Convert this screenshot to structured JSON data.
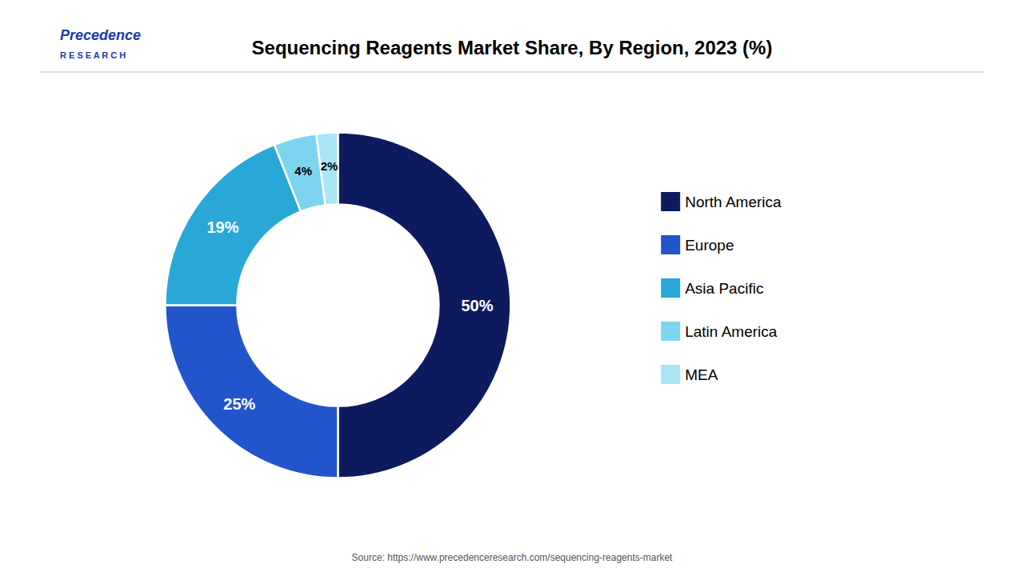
{
  "chart_data": {
    "type": "pie",
    "title": "Sequencing Reagents Market Share, By Region, 2023 (%)",
    "categories": [
      "North America",
      "Europe",
      "Asia Pacific",
      "Latin America",
      "MEA"
    ],
    "values": [
      50,
      25,
      19,
      4,
      2
    ],
    "value_labels": [
      "50%",
      "25%",
      "19%",
      "4%",
      "2%"
    ],
    "colors": [
      "#0d1b5e",
      "#2255cc",
      "#29a8d8",
      "#7dd4ef",
      "#a8e6f5"
    ],
    "data_labels": true,
    "legend": "right",
    "annotations": [
      "Precedence",
      "R E S E A R C H",
      "Source: https://www.precedenceresearch.com/sequencing-reagents-market"
    ]
  }
}
